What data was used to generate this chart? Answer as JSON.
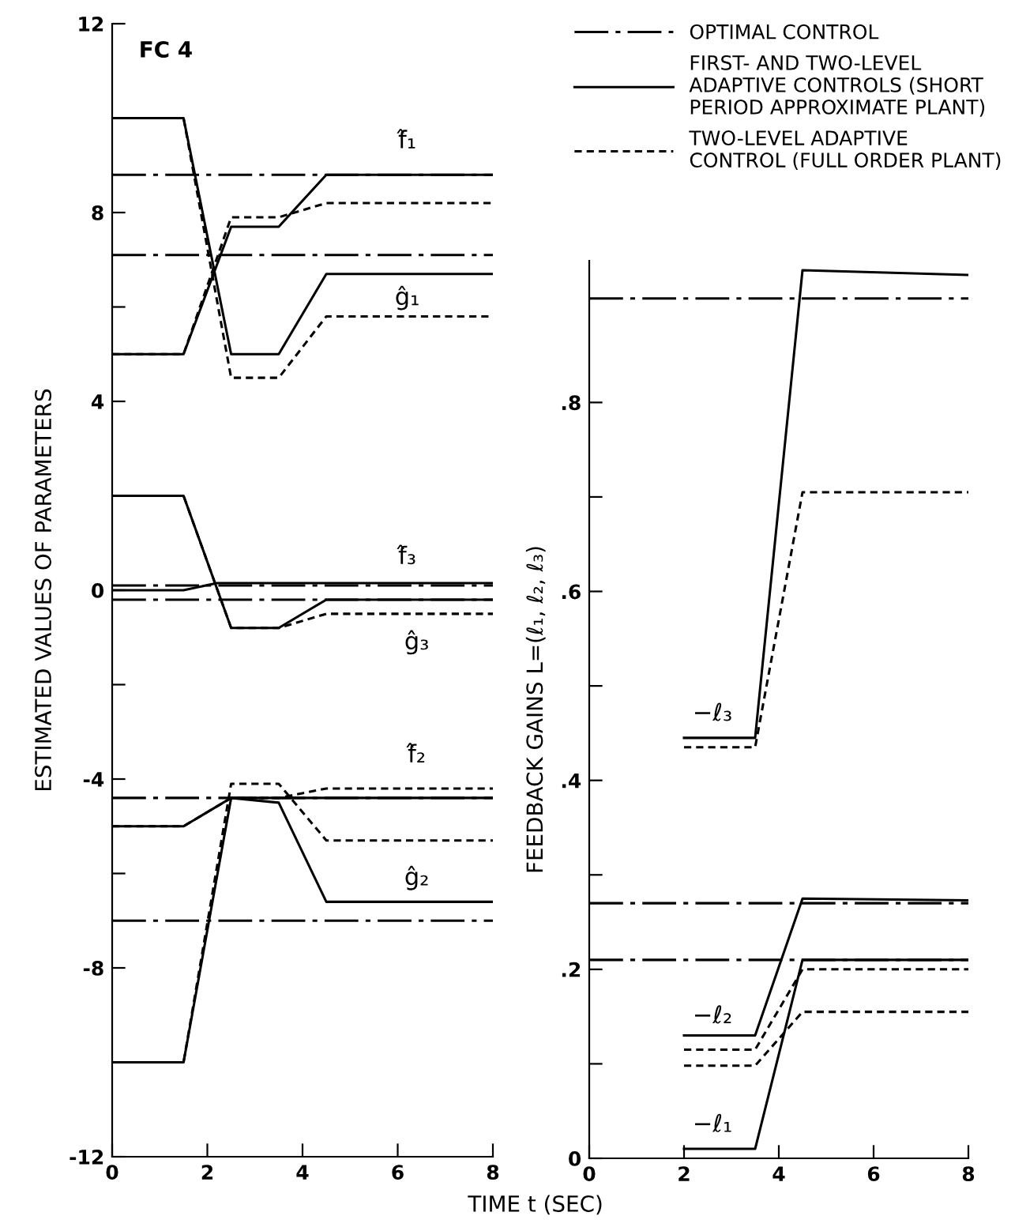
{
  "chart_data": [
    {
      "type": "line",
      "ylabel": "ESTIMATED VALUES OF PARAMETERS",
      "xlabel": "TIME t (SEC)",
      "xlim": [
        0,
        8
      ],
      "xticks": [
        0,
        2,
        4,
        6,
        8
      ],
      "ylim": [
        -12,
        12
      ],
      "yticks": [
        -12,
        {
          "value": -10,
          "label": null
        },
        -8,
        {
          "value": -6,
          "label": null
        },
        -4,
        {
          "value": -2,
          "label": null
        },
        0,
        {
          "value": 2,
          "label": null
        },
        4,
        {
          "value": 6,
          "label": null
        },
        8,
        {
          "value": 10,
          "label": null
        },
        12
      ],
      "annotations": [
        "FC 4",
        "f̂₁",
        "ĝ₁",
        "f̂₃",
        "ĝ₃",
        "f̂₂",
        "ĝ₂"
      ],
      "series": [
        {
          "line_style": "dashdot",
          "color": "#000000",
          "x": [
            0,
            8
          ],
          "values": [
            8.8,
            8.8
          ]
        },
        {
          "line_style": "dashdot",
          "color": "#000000",
          "x": [
            0,
            8
          ],
          "values": [
            7.1,
            7.1
          ]
        },
        {
          "line_style": "solid",
          "color": "#000000",
          "x": [
            0,
            1.5,
            2.5,
            3.5,
            4.5,
            8
          ],
          "values": [
            5,
            5,
            7.7,
            7.7,
            8.8,
            8.8
          ]
        },
        {
          "line_style": "dashed",
          "color": "#000000",
          "x": [
            0,
            1.5,
            2.5,
            3.5,
            4.5,
            8
          ],
          "values": [
            5,
            5,
            7.9,
            7.9,
            8.2,
            8.2
          ]
        },
        {
          "line_style": "solid",
          "color": "#000000",
          "x": [
            0,
            1.5,
            2.5,
            3.5,
            4.5,
            8
          ],
          "values": [
            10,
            10,
            5,
            5,
            6.7,
            6.7
          ]
        },
        {
          "line_style": "dashed",
          "color": "#000000",
          "x": [
            0,
            1.5,
            2.5,
            3.5,
            4.5,
            8
          ],
          "values": [
            10,
            10,
            4.5,
            4.5,
            5.8,
            5.8
          ]
        },
        {
          "line_style": "dashdot",
          "color": "#000000",
          "x": [
            0,
            8
          ],
          "values": [
            0.1,
            0.1
          ]
        },
        {
          "line_style": "dashdot",
          "color": "#000000",
          "x": [
            0,
            8
          ],
          "values": [
            -0.2,
            -0.2
          ]
        },
        {
          "line_style": "solid",
          "color": "#000000",
          "x": [
            0,
            1.5,
            2.2,
            8
          ],
          "values": [
            0,
            0,
            0.15,
            0.15
          ]
        },
        {
          "line_style": "solid",
          "color": "#000000",
          "x": [
            0,
            1.5,
            2.5,
            3.5,
            4.5,
            8
          ],
          "values": [
            2,
            2,
            -0.8,
            -0.8,
            -0.2,
            -0.2
          ]
        },
        {
          "line_style": "dashed",
          "color": "#000000",
          "x": [
            0,
            1.5,
            2.5,
            3.5,
            4.5,
            8
          ],
          "values": [
            2,
            2,
            -0.8,
            -0.8,
            -0.5,
            -0.5
          ]
        },
        {
          "line_style": "dashdot",
          "color": "#000000",
          "x": [
            0,
            8
          ],
          "values": [
            -4.4,
            -4.4
          ]
        },
        {
          "line_style": "dashdot",
          "color": "#000000",
          "x": [
            0,
            8
          ],
          "values": [
            -7,
            -7
          ]
        },
        {
          "line_style": "solid",
          "color": "#000000",
          "x": [
            0,
            1.5,
            2.5,
            3.5,
            4.5,
            8
          ],
          "values": [
            -5,
            -5,
            -4.4,
            -4.4,
            -4.4,
            -4.4
          ]
        },
        {
          "line_style": "dashed",
          "color": "#000000",
          "x": [
            0,
            1.5,
            2.5,
            3.5,
            4.5,
            8
          ],
          "values": [
            -5,
            -5,
            -4.4,
            -4.4,
            -4.2,
            -4.2
          ]
        },
        {
          "line_style": "solid",
          "color": "#000000",
          "x": [
            0,
            1.5,
            2.5,
            3.5,
            4.5,
            8
          ],
          "values": [
            -10,
            -10,
            -4.4,
            -4.5,
            -6.6,
            -6.6
          ]
        },
        {
          "line_style": "dashed",
          "color": "#000000",
          "x": [
            0,
            1.5,
            2.5,
            3.5,
            4.5,
            8
          ],
          "values": [
            -10,
            -10,
            -4.1,
            -4.1,
            -5.3,
            -5.3
          ]
        }
      ]
    },
    {
      "type": "line",
      "ylabel": "FEEDBACK GAINS L=(ℓ₁, ℓ₂, ℓ₃)",
      "xlim": [
        0,
        8
      ],
      "xticks": [
        0,
        2,
        4,
        6,
        8
      ],
      "ylim": [
        0,
        0.95
      ],
      "yticks": [
        0,
        {
          "value": 0.1,
          "label": null
        },
        {
          "value": 0.2,
          "label": ".2"
        },
        {
          "value": 0.3,
          "label": null
        },
        {
          "value": 0.4,
          "label": ".4"
        },
        {
          "value": 0.5,
          "label": null
        },
        {
          "value": 0.6,
          "label": ".6"
        },
        {
          "value": 0.7,
          "label": null
        },
        {
          "value": 0.8,
          "label": ".8"
        }
      ],
      "legend": "top",
      "annotations": [
        "−ℓ₃",
        "−ℓ₂",
        "−ℓ₁"
      ],
      "series": [
        {
          "name": "OPTIMAL CONTROL",
          "line_style": "dashdot",
          "color": "#000000",
          "x": [
            0,
            8
          ],
          "values": [
            0.91,
            0.91
          ]
        },
        {
          "name": "FIRST- AND TWO-LEVEL\nADAPTIVE CONTROLS (SHORT\nPERIOD APPROXIMATE PLANT)",
          "line_style": "solid",
          "color": "#000000",
          "x": [
            2,
            3.5,
            4.5,
            8
          ],
          "values": [
            0.445,
            0.445,
            0.94,
            0.935
          ]
        },
        {
          "name": "TWO-LEVEL ADAPTIVE\nCONTROL (FULL ORDER PLANT)",
          "line_style": "dashed",
          "color": "#000000",
          "x": [
            2,
            3.5,
            4.5,
            8
          ],
          "values": [
            0.435,
            0.435,
            0.705,
            0.705
          ]
        },
        {
          "line_style": "dashdot",
          "color": "#000000",
          "x": [
            0,
            8
          ],
          "values": [
            0.27,
            0.27
          ]
        },
        {
          "line_style": "dashdot",
          "color": "#000000",
          "x": [
            0,
            8
          ],
          "values": [
            0.21,
            0.21
          ]
        },
        {
          "line_style": "solid",
          "color": "#000000",
          "x": [
            2,
            3.5,
            4.5,
            8
          ],
          "values": [
            0.13,
            0.13,
            0.275,
            0.273
          ]
        },
        {
          "line_style": "dashed",
          "color": "#000000",
          "x": [
            2,
            3.5,
            4.5,
            8
          ],
          "values": [
            0.115,
            0.115,
            0.2,
            0.2
          ]
        },
        {
          "line_style": "solid",
          "color": "#000000",
          "x": [
            2,
            3.5,
            4.5,
            8
          ],
          "values": [
            0.01,
            0.01,
            0.21,
            0.21
          ]
        },
        {
          "line_style": "dashed",
          "color": "#000000",
          "x": [
            2,
            3.5,
            4.5,
            8
          ],
          "values": [
            0.098,
            0.098,
            0.155,
            0.155
          ]
        }
      ]
    }
  ]
}
